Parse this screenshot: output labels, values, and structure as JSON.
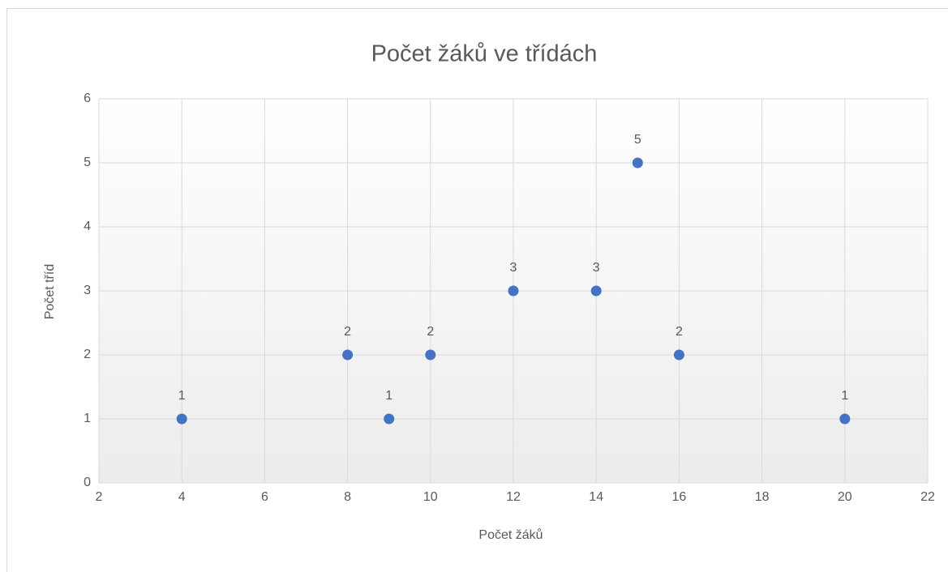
{
  "chart_data": {
    "type": "scatter",
    "title": "Počet žáků ve třídách",
    "xlabel": "Počet žáků",
    "ylabel": "Počet tříd",
    "x": [
      4,
      8,
      9,
      10,
      12,
      14,
      15,
      16,
      20
    ],
    "values": [
      1,
      2,
      1,
      2,
      3,
      3,
      5,
      2,
      1
    ],
    "color": "#4472c4",
    "xlim": [
      2,
      22
    ],
    "xticks": [
      2,
      4,
      6,
      8,
      10,
      12,
      14,
      16,
      18,
      20,
      22
    ],
    "ylim": [
      0,
      6
    ],
    "yticks": [
      0,
      1,
      2,
      3,
      4,
      5,
      6
    ],
    "grid": true
  }
}
